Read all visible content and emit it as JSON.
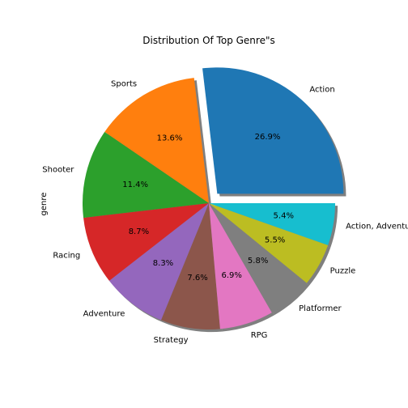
{
  "chart_data": {
    "type": "pie",
    "title": "Distribution Of Top Genre\"s",
    "ylabel": "genre",
    "categories": [
      "Action",
      "Sports",
      "Shooter",
      "Racing",
      "Adventure",
      "Strategy",
      "RPG",
      "Platformer",
      "Puzzle",
      "Action, Adventure"
    ],
    "values": [
      26.9,
      13.6,
      11.4,
      8.7,
      8.3,
      7.6,
      6.9,
      5.8,
      5.5,
      5.4
    ],
    "percent_labels": [
      "26.9%",
      "13.6%",
      "11.4%",
      "8.7%",
      "8.3%",
      "7.6%",
      "6.9%",
      "5.8%",
      "5.5%",
      "5.4%"
    ],
    "colors": [
      "#1f77b4",
      "#ff7f0e",
      "#2ca02c",
      "#d62728",
      "#9467bd",
      "#8c564b",
      "#e377c2",
      "#7f7f7f",
      "#bcbd22",
      "#17becf"
    ],
    "exploded": [
      "Action"
    ],
    "shadow": true,
    "start_angle_deg": 0,
    "direction": "counterclockwise"
  }
}
